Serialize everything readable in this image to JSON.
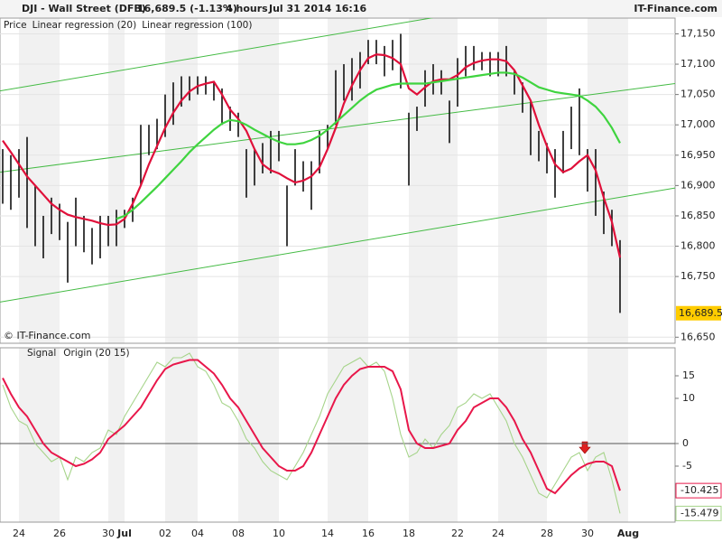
{
  "header": {
    "symbol": "DJI - Wall Street (DFB)",
    "quote": "16,689.5 (-1.13%)",
    "interval": "4 hours",
    "timestamp": "Jul 31 2014 16:16",
    "brand": "IT-Finance.com"
  },
  "chart_data": [
    {
      "type": "ohlc",
      "source": "© IT-Finance.com",
      "price_name": "Price",
      "bar_color": "#111111",
      "categories": [
        null,
        null,
        "24",
        null,
        null,
        null,
        null,
        "26",
        null,
        null,
        null,
        null,
        null,
        "30",
        null,
        "Jul",
        null,
        null,
        null,
        null,
        "02",
        null,
        null,
        null,
        "04",
        null,
        null,
        null,
        null,
        "08",
        null,
        null,
        null,
        null,
        "10",
        null,
        null,
        null,
        null,
        null,
        "14",
        null,
        null,
        null,
        null,
        "16",
        null,
        null,
        null,
        null,
        "18",
        null,
        null,
        null,
        null,
        null,
        "22",
        null,
        null,
        null,
        null,
        "24",
        null,
        null,
        null,
        null,
        null,
        "28",
        null,
        null,
        null,
        null,
        "30",
        null,
        null,
        null,
        null,
        "Aug"
      ],
      "high": [
        16960,
        16950,
        16960,
        16980,
        16900,
        16850,
        16880,
        16870,
        16840,
        16880,
        16850,
        16830,
        16850,
        16850,
        16860,
        16860,
        16880,
        17000,
        17000,
        17010,
        17050,
        17070,
        17080,
        17080,
        17080,
        17080,
        17070,
        17060,
        17030,
        17020,
        16960,
        16960,
        16970,
        16990,
        16990,
        16900,
        16960,
        16940,
        16940,
        16990,
        17000,
        17090,
        17100,
        17110,
        17120,
        17140,
        17140,
        17130,
        17140,
        17150,
        17020,
        17030,
        17090,
        17100,
        17090,
        17040,
        17110,
        17130,
        17130,
        17120,
        17120,
        17120,
        17130,
        17090,
        17070,
        17040,
        16990,
        16970,
        16960,
        16990,
        17030,
        17060,
        16960,
        16960,
        16890,
        16860,
        16810,
        null
      ],
      "low": [
        16870,
        16860,
        16880,
        16830,
        16800,
        16780,
        16820,
        16810,
        16740,
        16800,
        16790,
        16770,
        16780,
        16800,
        16800,
        16830,
        16840,
        16900,
        16950,
        16960,
        16980,
        17000,
        17030,
        17040,
        17050,
        17050,
        17040,
        17000,
        16990,
        16980,
        16880,
        16900,
        16920,
        16920,
        16940,
        16800,
        16900,
        16890,
        16860,
        16920,
        16960,
        17000,
        17040,
        17040,
        17060,
        17100,
        17100,
        17080,
        17090,
        17060,
        16900,
        16990,
        17030,
        17050,
        17050,
        16970,
        17030,
        17080,
        17090,
        17090,
        17080,
        17080,
        17080,
        17050,
        17020,
        16950,
        16940,
        16920,
        16880,
        16920,
        16960,
        16950,
        16890,
        16850,
        16820,
        16800,
        16690,
        null
      ],
      "last_value": 16689.5,
      "last_label": "16,689.5",
      "last_color": "#ffcc00",
      "series": [
        {
          "name": "Linear regression (20)",
          "color": "#e0103a",
          "values": [
            16974,
            16955,
            16935,
            16915,
            16900,
            16885,
            16870,
            16860,
            16852,
            16848,
            16845,
            16842,
            16838,
            16835,
            16836,
            16845,
            16870,
            16900,
            16935,
            16965,
            16995,
            17020,
            17040,
            17055,
            17064,
            17068,
            17071,
            17050,
            17025,
            17010,
            16990,
            16960,
            16935,
            16925,
            16920,
            16912,
            16905,
            16908,
            16915,
            16930,
            16960,
            16995,
            17035,
            17065,
            17090,
            17110,
            17116,
            17115,
            17110,
            17100,
            17060,
            17050,
            17062,
            17072,
            17075,
            17075,
            17082,
            17095,
            17102,
            17106,
            17108,
            17108,
            17105,
            17090,
            17065,
            17040,
            17000,
            16965,
            16935,
            16922,
            16928,
            16940,
            16950,
            16925,
            16880,
            16840,
            16781,
            null
          ]
        },
        {
          "name": "Linear regression (100)",
          "color": "#3fd43f",
          "values": [
            null,
            null,
            null,
            null,
            null,
            null,
            null,
            null,
            null,
            null,
            null,
            null,
            null,
            null,
            16845,
            16850,
            16860,
            16872,
            16885,
            16898,
            16912,
            16926,
            16940,
            16955,
            16968,
            16980,
            16992,
            17002,
            17008,
            17006,
            17000,
            16992,
            16985,
            16978,
            16972,
            16968,
            16968,
            16970,
            16975,
            16982,
            16992,
            17004,
            17016,
            17028,
            17040,
            17050,
            17058,
            17062,
            17066,
            17068,
            17068,
            17068,
            17068,
            17070,
            17072,
            17074,
            17076,
            17078,
            17080,
            17082,
            17084,
            17086,
            17086,
            17084,
            17078,
            17070,
            17062,
            17058,
            17054,
            17052,
            17050,
            17048,
            17040,
            17030,
            17015,
            16995,
            16970,
            null
          ]
        }
      ],
      "channel": {
        "color": "#44bb44",
        "lines": [
          [
            17056,
            17244
          ],
          [
            16922,
            17068
          ],
          [
            16708,
            16896
          ]
        ]
      },
      "ylim": [
        16640,
        17176
      ],
      "yticks": [
        {
          "value": 16650,
          "label": "16,650"
        },
        {
          "value": 16750,
          "label": "16,750"
        },
        {
          "value": 16800,
          "label": "16,800"
        },
        {
          "value": 16850,
          "label": "16,850"
        },
        {
          "value": 16900,
          "label": "16,900"
        },
        {
          "value": 16950,
          "label": "16,950"
        },
        {
          "value": 17000,
          "label": "17,000"
        },
        {
          "value": 17050,
          "label": "17,050"
        },
        {
          "value": 17100,
          "label": "17,100"
        },
        {
          "value": 17150,
          "label": "17,150"
        }
      ],
      "grid": true
    },
    {
      "type": "line",
      "series": [
        {
          "name": "Signal",
          "color": "#e8174a",
          "values": [
            14.5,
            11,
            8,
            6,
            3,
            0,
            -2,
            -3,
            -4,
            -5,
            -4.5,
            -3.5,
            -2,
            1,
            2.5,
            4,
            6,
            8,
            11,
            14,
            16.5,
            17.5,
            18,
            18.5,
            18.5,
            17,
            15.5,
            13,
            10,
            8,
            5,
            2,
            -1,
            -3,
            -5,
            -6,
            -6,
            -5,
            -2,
            2,
            6,
            10,
            13,
            15,
            16.5,
            17,
            17,
            17,
            16,
            12,
            3,
            0,
            -1,
            -1,
            -0.5,
            0,
            3,
            5,
            8,
            9,
            10,
            10,
            8,
            5,
            1,
            -2,
            -6,
            -10,
            -11,
            -9,
            -7,
            -5.5,
            -4.5,
            -4,
            -4,
            -5,
            -10.425,
            null
          ]
        },
        {
          "name": "Origin (20 15)",
          "color": "#a6d48a",
          "values": [
            13,
            8,
            5,
            4,
            0,
            -2,
            -4,
            -3,
            -8,
            -3,
            -4,
            -2,
            -1,
            3,
            2,
            6,
            9,
            12,
            15,
            18,
            17,
            19,
            19,
            20,
            17,
            16,
            13,
            9,
            8,
            5,
            1,
            -1,
            -4,
            -6,
            -7,
            -8,
            -5,
            -2,
            2,
            6,
            11,
            14,
            17,
            18,
            19,
            17,
            18,
            16,
            10,
            2,
            -3,
            -2,
            1,
            -1,
            2,
            4,
            8,
            9,
            11,
            10,
            11,
            8,
            5,
            0,
            -3,
            -7,
            -11,
            -12,
            -9,
            -6,
            -3,
            -2,
            -6,
            -3,
            -2,
            -8,
            -15.479,
            null
          ]
        }
      ],
      "ylim": [
        -17.4,
        21.2
      ],
      "yticks": [
        15,
        10,
        0,
        -5
      ],
      "zero_line": true
    }
  ]
}
